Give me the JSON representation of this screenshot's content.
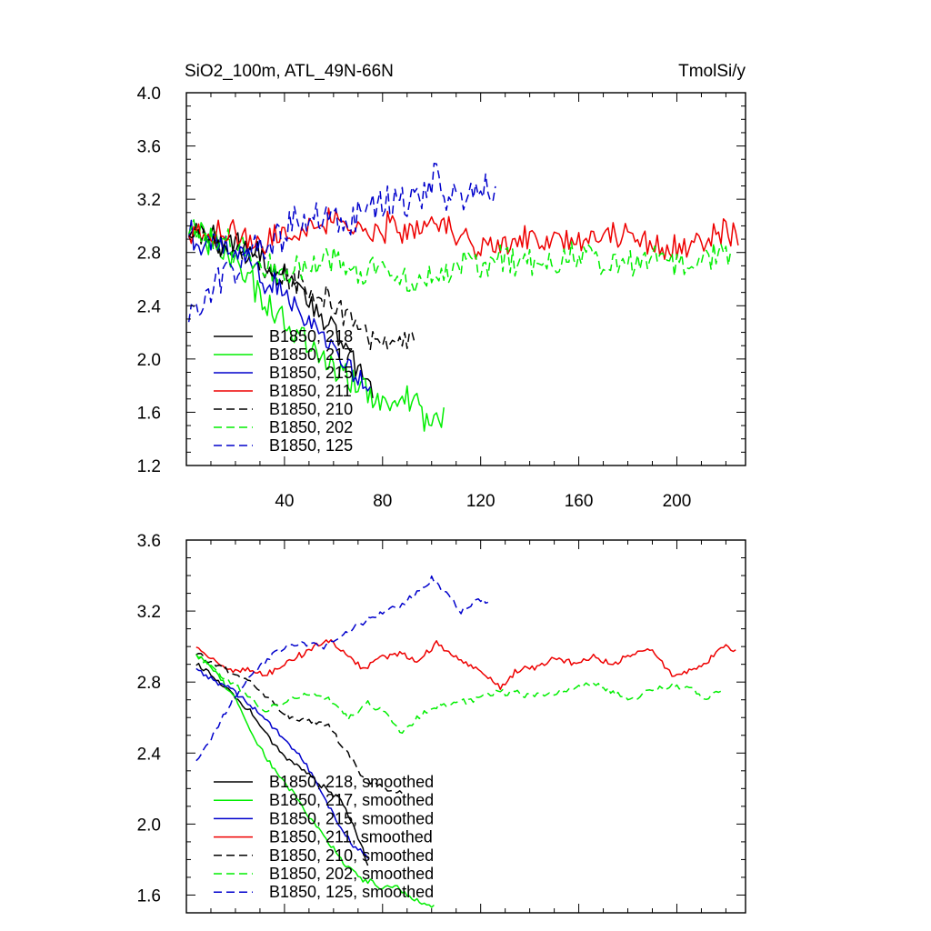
{
  "chart_data": [
    {
      "type": "line",
      "title_left": "SiO2_100m, ATL_49N-66N",
      "title_right": "TmolSi/y",
      "xlabel": "",
      "ylabel": "",
      "xlim": [
        0,
        228
      ],
      "ylim": [
        1.2,
        4.0
      ],
      "x_ticks": [
        40,
        80,
        120,
        160,
        200
      ],
      "y_ticks": [
        1.2,
        1.6,
        2.0,
        2.4,
        2.8,
        3.2,
        3.6,
        4.0
      ],
      "y_tick_labels": [
        "1.2",
        "1.6",
        "2.0",
        "2.4",
        "2.8",
        "3.2",
        "3.6",
        "4.0"
      ],
      "legend_position": "bottom-left",
      "series": [
        {
          "name": "B1850, 218",
          "color": "#000000",
          "dash": "solid",
          "x_start": 1,
          "x_end": 76,
          "noise": 0.12,
          "anchors": [
            [
              1,
              2.96
            ],
            [
              10,
              2.92
            ],
            [
              20,
              2.84
            ],
            [
              30,
              2.78
            ],
            [
              40,
              2.62
            ],
            [
              50,
              2.45
            ],
            [
              58,
              2.25
            ],
            [
              65,
              2.1
            ],
            [
              72,
              1.85
            ],
            [
              76,
              1.75
            ]
          ]
        },
        {
          "name": "B1850, 217",
          "color": "#00ee00",
          "dash": "solid",
          "x_start": 1,
          "x_end": 105,
          "noise": 0.14,
          "anchors": [
            [
              1,
              2.98
            ],
            [
              10,
              2.88
            ],
            [
              20,
              2.72
            ],
            [
              30,
              2.5
            ],
            [
              40,
              2.3
            ],
            [
              50,
              2.1
            ],
            [
              60,
              1.92
            ],
            [
              70,
              1.78
            ],
            [
              80,
              1.7
            ],
            [
              88,
              1.72
            ],
            [
              95,
              1.62
            ],
            [
              100,
              1.55
            ],
            [
              105,
              1.58
            ]
          ]
        },
        {
          "name": "B1850, 215",
          "color": "#0000cc",
          "dash": "solid",
          "x_start": 1,
          "x_end": 75,
          "noise": 0.14,
          "anchors": [
            [
              1,
              2.95
            ],
            [
              10,
              2.88
            ],
            [
              20,
              2.78
            ],
            [
              30,
              2.64
            ],
            [
              40,
              2.5
            ],
            [
              50,
              2.32
            ],
            [
              60,
              2.1
            ],
            [
              68,
              1.9
            ],
            [
              75,
              1.8
            ]
          ]
        },
        {
          "name": "B1850, 211",
          "color": "#ee0000",
          "dash": "solid",
          "x_start": 1,
          "x_end": 225,
          "noise": 0.13,
          "anchors": [
            [
              1,
              2.96
            ],
            [
              10,
              2.92
            ],
            [
              20,
              2.95
            ],
            [
              30,
              2.88
            ],
            [
              40,
              2.95
            ],
            [
              50,
              3.0
            ],
            [
              60,
              3.05
            ],
            [
              70,
              2.95
            ],
            [
              80,
              2.98
            ],
            [
              90,
              3.0
            ],
            [
              100,
              3.02
            ],
            [
              110,
              2.95
            ],
            [
              120,
              2.82
            ],
            [
              130,
              2.85
            ],
            [
              140,
              2.92
            ],
            [
              150,
              2.9
            ],
            [
              160,
              2.88
            ],
            [
              170,
              2.93
            ],
            [
              180,
              2.95
            ],
            [
              190,
              2.88
            ],
            [
              200,
              2.82
            ],
            [
              210,
              2.92
            ],
            [
              220,
              3.0
            ],
            [
              225,
              2.9
            ]
          ]
        },
        {
          "name": "B1850, 210",
          "color": "#000000",
          "dash": "dashed",
          "x_start": 1,
          "x_end": 93,
          "noise": 0.12,
          "anchors": [
            [
              1,
              2.95
            ],
            [
              10,
              2.9
            ],
            [
              20,
              2.82
            ],
            [
              30,
              2.72
            ],
            [
              40,
              2.62
            ],
            [
              50,
              2.55
            ],
            [
              58,
              2.45
            ],
            [
              65,
              2.3
            ],
            [
              72,
              2.18
            ],
            [
              80,
              2.1
            ],
            [
              88,
              2.15
            ],
            [
              93,
              2.12
            ]
          ]
        },
        {
          "name": "B1850, 202",
          "color": "#00ee00",
          "dash": "dashed",
          "x_start": 1,
          "x_end": 222,
          "noise": 0.13,
          "anchors": [
            [
              1,
              2.98
            ],
            [
              10,
              2.92
            ],
            [
              20,
              2.82
            ],
            [
              30,
              2.72
            ],
            [
              40,
              2.65
            ],
            [
              50,
              2.72
            ],
            [
              60,
              2.75
            ],
            [
              70,
              2.62
            ],
            [
              80,
              2.68
            ],
            [
              90,
              2.6
            ],
            [
              100,
              2.62
            ],
            [
              110,
              2.68
            ],
            [
              120,
              2.72
            ],
            [
              130,
              2.74
            ],
            [
              140,
              2.72
            ],
            [
              150,
              2.7
            ],
            [
              160,
              2.78
            ],
            [
              170,
              2.74
            ],
            [
              180,
              2.72
            ],
            [
              190,
              2.78
            ],
            [
              200,
              2.72
            ],
            [
              210,
              2.74
            ],
            [
              222,
              2.82
            ]
          ]
        },
        {
          "name": "B1850, 125",
          "color": "#0000cc",
          "dash": "dashed",
          "x_start": 1,
          "x_end": 126,
          "noise": 0.17,
          "anchors": [
            [
              1,
              2.32
            ],
            [
              8,
              2.45
            ],
            [
              15,
              2.6
            ],
            [
              25,
              2.75
            ],
            [
              35,
              2.9
            ],
            [
              45,
              3.0
            ],
            [
              55,
              3.05
            ],
            [
              65,
              3.02
            ],
            [
              75,
              3.12
            ],
            [
              85,
              3.18
            ],
            [
              95,
              3.25
            ],
            [
              102,
              3.38
            ],
            [
              108,
              3.18
            ],
            [
              115,
              3.22
            ],
            [
              120,
              3.28
            ],
            [
              126,
              3.3
            ]
          ]
        }
      ]
    },
    {
      "type": "line",
      "xlabel": "",
      "ylabel": "",
      "xlim": [
        0,
        228
      ],
      "ylim": [
        1.5,
        3.6
      ],
      "x_ticks": [
        40,
        80,
        120,
        160,
        200
      ],
      "y_ticks": [
        1.6,
        2.0,
        2.4,
        2.8,
        3.2,
        3.6
      ],
      "y_tick_labels": [
        "1.6",
        "2.0",
        "2.4",
        "2.8",
        "3.2",
        "3.6"
      ],
      "legend_position": "bottom-left",
      "series": [
        {
          "name": "B1850, 218, smoothed",
          "color": "#000000",
          "dash": "solid",
          "x_start": 4,
          "x_end": 74,
          "noise": 0.02,
          "anchors": [
            [
              4,
              2.9
            ],
            [
              12,
              2.82
            ],
            [
              20,
              2.72
            ],
            [
              28,
              2.6
            ],
            [
              34,
              2.48
            ],
            [
              40,
              2.38
            ],
            [
              48,
              2.3
            ],
            [
              55,
              2.22
            ],
            [
              62,
              2.15
            ],
            [
              68,
              2.0
            ],
            [
              74,
              1.78
            ]
          ]
        },
        {
          "name": "B1850, 217, smoothed",
          "color": "#00ee00",
          "dash": "solid",
          "x_start": 4,
          "x_end": 101,
          "noise": 0.02,
          "anchors": [
            [
              4,
              2.96
            ],
            [
              12,
              2.85
            ],
            [
              20,
              2.7
            ],
            [
              26,
              2.52
            ],
            [
              32,
              2.38
            ],
            [
              40,
              2.24
            ],
            [
              48,
              2.08
            ],
            [
              55,
              1.95
            ],
            [
              62,
              1.82
            ],
            [
              70,
              1.7
            ],
            [
              80,
              1.64
            ],
            [
              85,
              1.66
            ],
            [
              92,
              1.58
            ],
            [
              101,
              1.53
            ]
          ]
        },
        {
          "name": "B1850, 215, smoothed",
          "color": "#0000cc",
          "dash": "solid",
          "x_start": 4,
          "x_end": 74,
          "noise": 0.02,
          "anchors": [
            [
              4,
              2.88
            ],
            [
              12,
              2.8
            ],
            [
              20,
              2.74
            ],
            [
              28,
              2.65
            ],
            [
              35,
              2.55
            ],
            [
              42,
              2.45
            ],
            [
              48,
              2.35
            ],
            [
              55,
              2.18
            ],
            [
              62,
              2.0
            ],
            [
              68,
              1.88
            ],
            [
              74,
              1.82
            ]
          ]
        },
        {
          "name": "B1850, 211, smoothed",
          "color": "#ee0000",
          "dash": "solid",
          "x_start": 4,
          "x_end": 224,
          "noise": 0.02,
          "anchors": [
            [
              4,
              3.0
            ],
            [
              10,
              2.94
            ],
            [
              18,
              2.86
            ],
            [
              25,
              2.88
            ],
            [
              32,
              2.84
            ],
            [
              40,
              2.9
            ],
            [
              50,
              2.98
            ],
            [
              58,
              3.04
            ],
            [
              65,
              2.96
            ],
            [
              72,
              2.88
            ],
            [
              80,
              2.94
            ],
            [
              88,
              2.96
            ],
            [
              94,
              2.92
            ],
            [
              102,
              3.02
            ],
            [
              108,
              2.96
            ],
            [
              115,
              2.9
            ],
            [
              122,
              2.85
            ],
            [
              128,
              2.76
            ],
            [
              134,
              2.86
            ],
            [
              142,
              2.88
            ],
            [
              150,
              2.94
            ],
            [
              158,
              2.9
            ],
            [
              166,
              2.94
            ],
            [
              174,
              2.9
            ],
            [
              182,
              2.96
            ],
            [
              190,
              2.98
            ],
            [
              198,
              2.84
            ],
            [
              205,
              2.86
            ],
            [
              212,
              2.9
            ],
            [
              218,
              3.0
            ],
            [
              224,
              2.98
            ]
          ]
        },
        {
          "name": "B1850, 210, smoothed",
          "color": "#000000",
          "dash": "dashed",
          "x_start": 4,
          "x_end": 89,
          "noise": 0.02,
          "anchors": [
            [
              4,
              2.96
            ],
            [
              12,
              2.9
            ],
            [
              20,
              2.84
            ],
            [
              28,
              2.78
            ],
            [
              35,
              2.68
            ],
            [
              42,
              2.6
            ],
            [
              50,
              2.58
            ],
            [
              58,
              2.55
            ],
            [
              65,
              2.42
            ],
            [
              72,
              2.26
            ],
            [
              80,
              2.2
            ],
            [
              89,
              2.18
            ]
          ]
        },
        {
          "name": "B1850, 202, smoothed",
          "color": "#00ee00",
          "dash": "dashed",
          "x_start": 4,
          "x_end": 219,
          "noise": 0.02,
          "anchors": [
            [
              4,
              2.96
            ],
            [
              12,
              2.86
            ],
            [
              22,
              2.76
            ],
            [
              32,
              2.64
            ],
            [
              42,
              2.7
            ],
            [
              50,
              2.74
            ],
            [
              58,
              2.7
            ],
            [
              66,
              2.6
            ],
            [
              74,
              2.68
            ],
            [
              82,
              2.62
            ],
            [
              88,
              2.5
            ],
            [
              94,
              2.6
            ],
            [
              102,
              2.66
            ],
            [
              110,
              2.68
            ],
            [
              118,
              2.7
            ],
            [
              126,
              2.74
            ],
            [
              134,
              2.74
            ],
            [
              142,
              2.72
            ],
            [
              150,
              2.74
            ],
            [
              158,
              2.76
            ],
            [
              166,
              2.8
            ],
            [
              174,
              2.74
            ],
            [
              182,
              2.7
            ],
            [
              190,
              2.76
            ],
            [
              198,
              2.78
            ],
            [
              206,
              2.76
            ],
            [
              212,
              2.7
            ],
            [
              219,
              2.76
            ]
          ]
        },
        {
          "name": "B1850, 125, smoothed",
          "color": "#0000cc",
          "dash": "dashed",
          "x_start": 4,
          "x_end": 123,
          "noise": 0.02,
          "anchors": [
            [
              4,
              2.36
            ],
            [
              10,
              2.48
            ],
            [
              18,
              2.68
            ],
            [
              26,
              2.84
            ],
            [
              34,
              2.94
            ],
            [
              42,
              3.02
            ],
            [
              50,
              3.02
            ],
            [
              56,
              3.0
            ],
            [
              62,
              3.04
            ],
            [
              70,
              3.12
            ],
            [
              78,
              3.18
            ],
            [
              86,
              3.22
            ],
            [
              94,
              3.3
            ],
            [
              100,
              3.38
            ],
            [
              106,
              3.3
            ],
            [
              112,
              3.2
            ],
            [
              118,
              3.26
            ],
            [
              123,
              3.26
            ]
          ]
        }
      ]
    }
  ]
}
